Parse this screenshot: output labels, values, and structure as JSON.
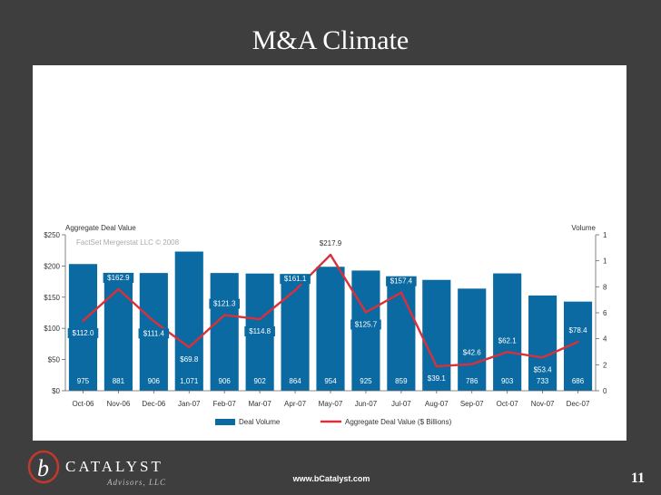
{
  "slide": {
    "title": "M&A Climate",
    "brand": "CATALYST",
    "brand_sub": "Advisors, LLC",
    "logo_letter": "b",
    "url": "www.bCatalyst.com",
    "page": "11"
  },
  "colors": {
    "bar": "#0a6aa1",
    "line": "#d9303a",
    "background": "#3e3e3e"
  },
  "chart_data": {
    "type": "bar",
    "title": "",
    "left_axis_label": "Aggregate Deal Value",
    "right_axis_label": "Volume",
    "watermark": "FactSet Mergerstat LLC © 2008",
    "categories": [
      "Oct-06",
      "Nov-06",
      "Dec-06",
      "Jan-07",
      "Feb-07",
      "Mar-07",
      "Apr-07",
      "May-07",
      "Jun-07",
      "Jul-07",
      "Aug-07",
      "Sep-07",
      "Oct-07",
      "Nov-07",
      "Dec-07"
    ],
    "series": [
      {
        "name": "Deal Volume",
        "type": "bar",
        "axis": "right",
        "values": [
          975,
          881,
          906,
          1071,
          906,
          902,
          864,
          954,
          925,
          859,
          853,
          786,
          903,
          733,
          686
        ],
        "labels": [
          "975",
          "881",
          "906",
          "1,071",
          "906",
          "902",
          "864",
          "954",
          "925",
          "859",
          "853",
          "786",
          "903",
          "733",
          "686"
        ]
      },
      {
        "name": "Aggregate Deal Value ($ Billions)",
        "type": "line",
        "axis": "left",
        "values": [
          112.0,
          162.9,
          111.4,
          69.8,
          121.3,
          114.8,
          161.1,
          217.9,
          125.7,
          157.4,
          39.1,
          42.6,
          62.1,
          53.4,
          78.4
        ],
        "labels": [
          "$112.0",
          "$162.9",
          "$111.4",
          "$69.8",
          "$121.3",
          "$114.8",
          "$161.1",
          "$217.9",
          "$125.7",
          "$157.4",
          "$39.1",
          "$42.6",
          "$62.1",
          "$53.4",
          "$78.4"
        ]
      }
    ],
    "left_ylim": [
      0,
      250
    ],
    "left_ticks": [
      0,
      50,
      100,
      150,
      200,
      250
    ],
    "left_tick_labels": [
      "$0",
      "$50",
      "$100",
      "$150",
      "$200",
      "$250"
    ],
    "right_ylim": [
      0,
      1200
    ],
    "right_ticks": [
      0,
      200,
      400,
      600,
      800,
      1000,
      1200
    ],
    "right_tick_labels": [
      "0",
      "200",
      "400",
      "600",
      "800",
      "1,000",
      "1,200"
    ],
    "legend": [
      "Deal Volume",
      "Aggregate Deal Value ($ Billions)"
    ],
    "legend_position": "bottom"
  }
}
